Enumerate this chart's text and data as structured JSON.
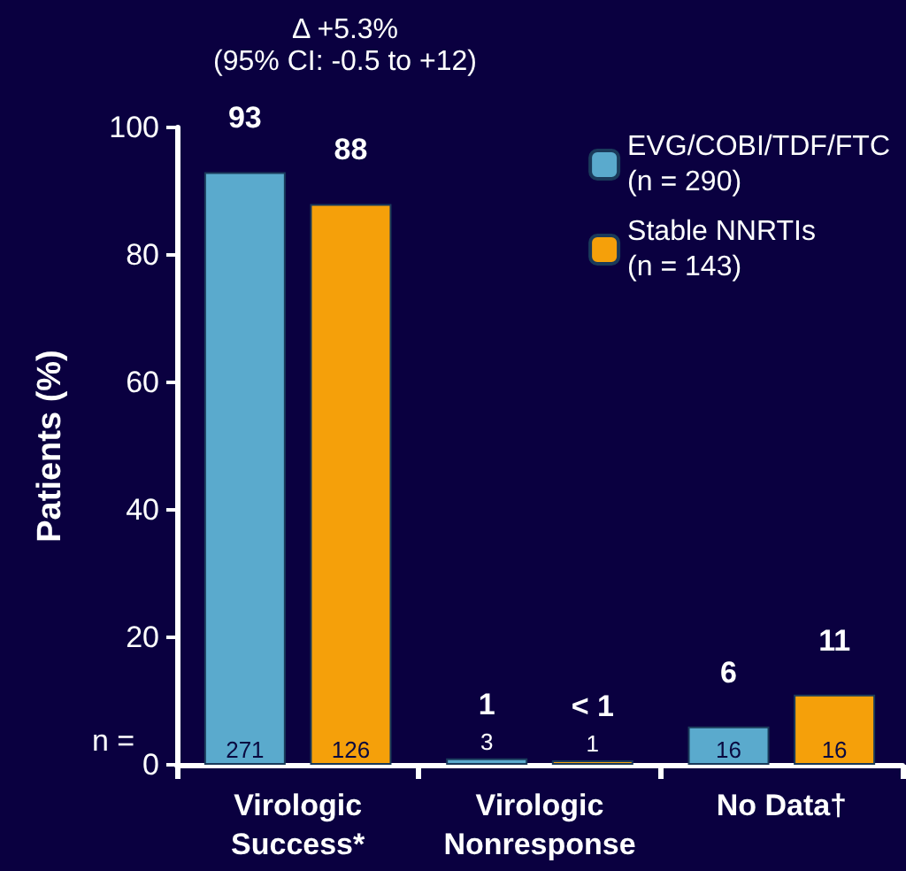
{
  "chart_data": {
    "type": "bar",
    "title": "Δ +5.3%",
    "subtitle": "(95% CI: -0.5 to +12)",
    "ylabel": "Patients (%)",
    "categories": [
      "Virologic\nSuccess*",
      "Virologic\nNonresponse",
      "No Data†"
    ],
    "series": [
      {
        "name": "EVG/COBI/TDF/FTC\n(n = 290)",
        "color": "#5aaacd",
        "values": [
          93,
          1,
          6
        ],
        "value_labels": [
          "93",
          "1",
          "6"
        ]
      },
      {
        "name": "Stable NNRTIs\n(n = 143)",
        "color": "#f5a00a",
        "values": [
          88,
          0.7,
          11
        ],
        "value_labels": [
          "88",
          "< 1",
          "11"
        ]
      }
    ],
    "ylim": [
      0,
      100
    ],
    "yticks": [
      0,
      20,
      40,
      60,
      80,
      100
    ],
    "grid": false,
    "legend": "top right",
    "annotations": [
      "n =",
      "271",
      "126",
      "3",
      "1",
      "16",
      "16"
    ]
  }
}
